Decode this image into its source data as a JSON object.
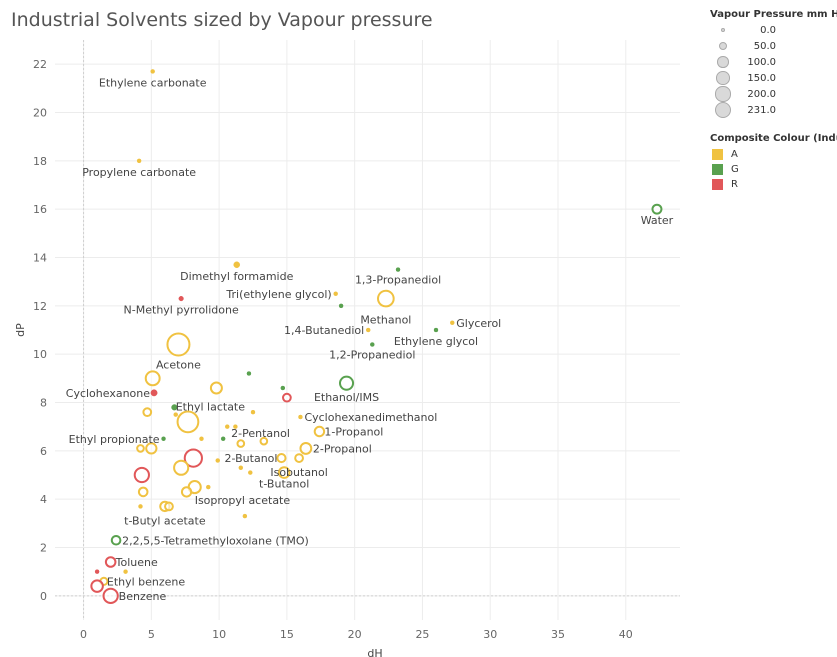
{
  "page": {
    "title": "Industrial Solvents sized by Vapour pressure"
  },
  "legend": {
    "size_title": "Vapour Pressure mm Hg",
    "size_items": [
      "0.0",
      "50.0",
      "100.0",
      "150.0",
      "200.0",
      "231.0"
    ],
    "color_title": "Composite Colour (Indust..",
    "color_items": [
      {
        "label": "A",
        "color": "#f0c241"
      },
      {
        "label": "G",
        "color": "#59a14f"
      },
      {
        "label": "R",
        "color": "#e15759"
      }
    ]
  },
  "chart_data": {
    "type": "scatter",
    "title": "Industrial Solvents sized by Vapour pressure",
    "xlabel": "dH",
    "ylabel": "dP",
    "xlim": [
      -1,
      44
    ],
    "ylim": [
      -1,
      23
    ],
    "xticks": [
      "0",
      "5",
      "10",
      "15",
      "20",
      "25",
      "30",
      "35",
      "40"
    ],
    "yticks": [
      "0",
      "2",
      "4",
      "6",
      "8",
      "10",
      "12",
      "14",
      "16",
      "18",
      "20",
      "22"
    ],
    "size_field": "Vapour Pressure mm Hg",
    "color_field": "Composite Colour",
    "points": [
      {
        "label": "Ethylene carbonate",
        "x": 5.1,
        "y": 21.7,
        "vp": 0,
        "cat": "A"
      },
      {
        "label": "Propylene carbonate",
        "x": 4.1,
        "y": 18.0,
        "vp": 0,
        "cat": "A"
      },
      {
        "label": "Water",
        "x": 42.3,
        "y": 16.0,
        "vp": 17.5,
        "cat": "G"
      },
      {
        "label": "Dimethyl formamide",
        "x": 11.3,
        "y": 13.7,
        "vp": 3,
        "cat": "A"
      },
      {
        "label": "1,3-Propanediol",
        "x": 23.2,
        "y": 13.5,
        "vp": 0,
        "cat": "G"
      },
      {
        "label": "N-Methyl pyrrolidone",
        "x": 7.2,
        "y": 12.3,
        "vp": 0.3,
        "cat": "R"
      },
      {
        "label": "Tri(ethylene glycol)",
        "x": 18.6,
        "y": 12.5,
        "vp": 0,
        "cat": "A"
      },
      {
        "label": "Methanol",
        "x": 22.3,
        "y": 12.3,
        "vp": 97,
        "cat": "A"
      },
      {
        "label": "",
        "x": 19.0,
        "y": 12.0,
        "vp": 0,
        "cat": "G"
      },
      {
        "label": "Glycerol",
        "x": 27.2,
        "y": 11.3,
        "vp": 0,
        "cat": "A"
      },
      {
        "label": "1,4-Butanediol",
        "x": 21.0,
        "y": 11.0,
        "vp": 0,
        "cat": "A"
      },
      {
        "label": "Ethylene glycol",
        "x": 26.0,
        "y": 11.0,
        "vp": 0,
        "cat": "G"
      },
      {
        "label": "Acetone",
        "x": 7.0,
        "y": 10.4,
        "vp": 231,
        "cat": "A"
      },
      {
        "label": "1,2-Propanediol",
        "x": 21.3,
        "y": 10.4,
        "vp": 0,
        "cat": "G"
      },
      {
        "label": "",
        "x": 12.2,
        "y": 9.2,
        "vp": 0,
        "cat": "G"
      },
      {
        "label": "",
        "x": 5.1,
        "y": 9.0,
        "vp": 70,
        "cat": "A"
      },
      {
        "label": "",
        "x": 9.8,
        "y": 8.6,
        "vp": 35,
        "cat": "A"
      },
      {
        "label": "",
        "x": 14.7,
        "y": 8.6,
        "vp": 0,
        "cat": "G"
      },
      {
        "label": "Ethanol/IMS",
        "x": 19.4,
        "y": 8.8,
        "vp": 59,
        "cat": "G"
      },
      {
        "label": "Cyclohexanone",
        "x": 5.2,
        "y": 8.4,
        "vp": 4,
        "cat": "R"
      },
      {
        "label": "",
        "x": 15.0,
        "y": 8.2,
        "vp": 10,
        "cat": "R"
      },
      {
        "label": "Ethyl lactate",
        "x": 6.7,
        "y": 7.8,
        "vp": 2,
        "cat": "G"
      },
      {
        "label": "",
        "x": 4.7,
        "y": 7.6,
        "vp": 10,
        "cat": "A"
      },
      {
        "label": "",
        "x": 6.8,
        "y": 7.5,
        "vp": 0,
        "cat": "A"
      },
      {
        "label": "",
        "x": 12.5,
        "y": 7.6,
        "vp": 0,
        "cat": "A"
      },
      {
        "label": "Cyclohexanedimethanol",
        "x": 16.0,
        "y": 7.4,
        "vp": 0,
        "cat": "A"
      },
      {
        "label": "",
        "x": 7.7,
        "y": 7.2,
        "vp": 200,
        "cat": "A"
      },
      {
        "label": "",
        "x": 10.6,
        "y": 7.0,
        "vp": 0,
        "cat": "A"
      },
      {
        "label": "",
        "x": 11.2,
        "y": 7.0,
        "vp": 0,
        "cat": "A"
      },
      {
        "label": "1-Propanol",
        "x": 17.4,
        "y": 6.8,
        "vp": 21,
        "cat": "A"
      },
      {
        "label": "Ethyl propionate",
        "x": 5.9,
        "y": 6.5,
        "vp": 0,
        "cat": "G"
      },
      {
        "label": "2-Pentanol",
        "x": 10.3,
        "y": 6.5,
        "vp": 0,
        "cat": "G"
      },
      {
        "label": "",
        "x": 8.7,
        "y": 6.5,
        "vp": 0,
        "cat": "A"
      },
      {
        "label": "",
        "x": 11.6,
        "y": 6.3,
        "vp": 5,
        "cat": "A"
      },
      {
        "label": "",
        "x": 13.3,
        "y": 6.4,
        "vp": 5,
        "cat": "A"
      },
      {
        "label": "",
        "x": 4.2,
        "y": 6.1,
        "vp": 5,
        "cat": "A"
      },
      {
        "label": "",
        "x": 5.0,
        "y": 6.1,
        "vp": 28,
        "cat": "A"
      },
      {
        "label": "2-Propanol",
        "x": 16.4,
        "y": 6.1,
        "vp": 33,
        "cat": "A"
      },
      {
        "label": "",
        "x": 8.1,
        "y": 5.7,
        "vp": 125,
        "cat": "R"
      },
      {
        "label": "2-Butanol",
        "x": 14.6,
        "y": 5.7,
        "vp": 12,
        "cat": "A"
      },
      {
        "label": "Isobutanol",
        "x": 15.9,
        "y": 5.7,
        "vp": 10,
        "cat": "A"
      },
      {
        "label": "",
        "x": 9.9,
        "y": 5.6,
        "vp": 0,
        "cat": "A"
      },
      {
        "label": "",
        "x": 7.2,
        "y": 5.3,
        "vp": 73,
        "cat": "A"
      },
      {
        "label": "",
        "x": 11.6,
        "y": 5.3,
        "vp": 0,
        "cat": "A"
      },
      {
        "label": "",
        "x": 12.3,
        "y": 5.1,
        "vp": 0,
        "cat": "A"
      },
      {
        "label": "t-Butanol",
        "x": 14.8,
        "y": 5.1,
        "vp": 31,
        "cat": "A"
      },
      {
        "label": "",
        "x": 4.3,
        "y": 5.0,
        "vp": 75,
        "cat": "R"
      },
      {
        "label": "Isopropyl acetate",
        "x": 8.2,
        "y": 4.5,
        "vp": 47,
        "cat": "A"
      },
      {
        "label": "",
        "x": 9.2,
        "y": 4.5,
        "vp": 0,
        "cat": "A"
      },
      {
        "label": "",
        "x": 7.6,
        "y": 4.3,
        "vp": 20,
        "cat": "A"
      },
      {
        "label": "",
        "x": 4.4,
        "y": 4.3,
        "vp": 15,
        "cat": "A"
      },
      {
        "label": "t-Butyl acetate",
        "x": 6.0,
        "y": 3.7,
        "vp": 20,
        "cat": "A"
      },
      {
        "label": "",
        "x": 6.3,
        "y": 3.7,
        "vp": 10,
        "cat": "A"
      },
      {
        "label": "",
        "x": 4.2,
        "y": 3.7,
        "vp": 0,
        "cat": "A"
      },
      {
        "label": "",
        "x": 11.9,
        "y": 3.3,
        "vp": 0,
        "cat": "A"
      },
      {
        "label": "2,2,5,5-Tetramethyloxolane (TMO)",
        "x": 2.4,
        "y": 2.3,
        "vp": 15,
        "cat": "G"
      },
      {
        "label": "Toluene",
        "x": 2.0,
        "y": 1.4,
        "vp": 22,
        "cat": "R"
      },
      {
        "label": "",
        "x": 1.0,
        "y": 1.0,
        "vp": 0,
        "cat": "R"
      },
      {
        "label": "",
        "x": 3.1,
        "y": 1.0,
        "vp": 0,
        "cat": "A"
      },
      {
        "label": "Ethyl benzene",
        "x": 1.5,
        "y": 0.6,
        "vp": 7,
        "cat": "A"
      },
      {
        "label": "",
        "x": 1.0,
        "y": 0.4,
        "vp": 40,
        "cat": "R"
      },
      {
        "label": "Benzene",
        "x": 2.0,
        "y": 0.0,
        "vp": 75,
        "cat": "R"
      }
    ]
  }
}
